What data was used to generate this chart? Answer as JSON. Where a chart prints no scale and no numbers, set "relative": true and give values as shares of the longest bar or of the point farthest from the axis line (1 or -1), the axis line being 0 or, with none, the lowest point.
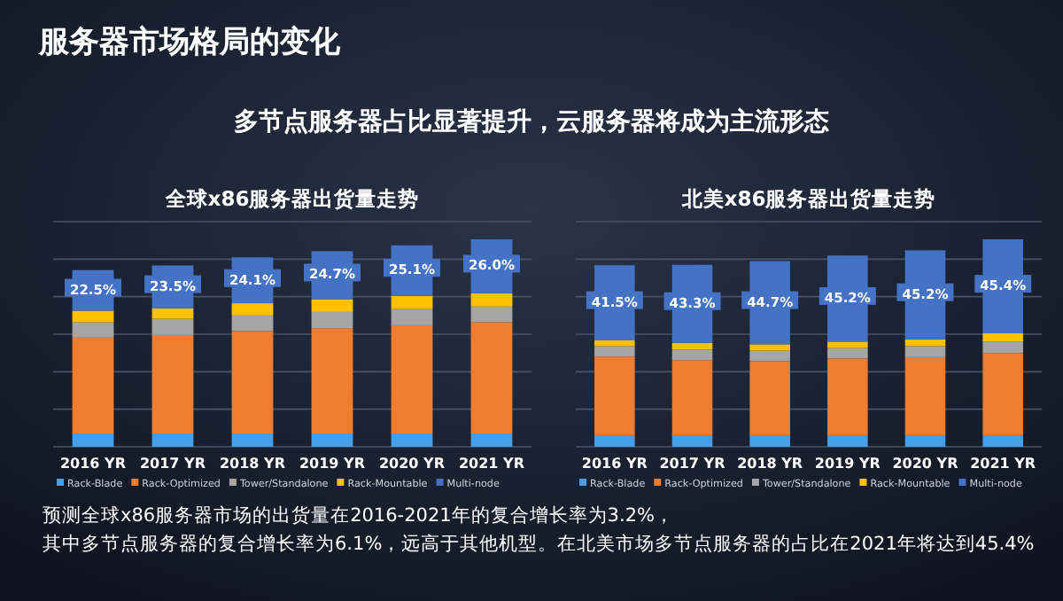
{
  "chart_data": [
    {
      "type": "other",
      "title": "服务器市场格局的变化",
      "subtitle": "多节点服务器占比显著提升，云服务器将成为主流形态",
      "annotations": [
        "预测全球x86服务器市场的出货量在2016-2021年的复合增长率为3.2%，",
        "其中多节点服务器的复合增长率为6.1%，远高于其他机型。在北美市场多节点服务器的占比在2021年将达到45.4%"
      ]
    },
    {
      "type": "bar",
      "title": "全球x86服务器出货量走势",
      "stacked": true,
      "relative": true,
      "grid": "y",
      "legend": "bottom",
      "categories": [
        "2016 YR",
        "2017 YR",
        "2018 YR",
        "2019 YR",
        "2020 YR",
        "2021 YR"
      ],
      "series": [
        {
          "name": "Rack-Blade",
          "color": "#4a9ee8",
          "values": [
            0.064,
            0.064,
            0.064,
            0.064,
            0.064,
            0.064
          ]
        },
        {
          "name": "Rack-Optimized",
          "color": "#ed7d31",
          "values": [
            0.466,
            0.475,
            0.494,
            0.508,
            0.522,
            0.537
          ]
        },
        {
          "name": "Tower/Standalone",
          "color": "#a5a5a5",
          "values": [
            0.07,
            0.078,
            0.075,
            0.078,
            0.078,
            0.075
          ]
        },
        {
          "name": "Rack-Mountable",
          "color": "#ffc000",
          "values": [
            0.056,
            0.05,
            0.059,
            0.061,
            0.064,
            0.064
          ]
        },
        {
          "name": "Multi-node",
          "color": "#4472c4",
          "values": [
            0.196,
            0.207,
            0.221,
            0.232,
            0.243,
            0.26
          ]
        }
      ],
      "annotations": [
        {
          "text": "22.5%",
          "x": "2016 YR",
          "y": 0.754
        },
        {
          "text": "23.5%",
          "x": "2017 YR",
          "y": 0.771
        },
        {
          "text": "24.1%",
          "x": "2018 YR",
          "y": 0.8
        },
        {
          "text": "24.7%",
          "x": "2019 YR",
          "y": 0.827
        },
        {
          "text": "25.1%",
          "x": "2020 YR",
          "y": 0.85
        },
        {
          "text": "26.0%",
          "x": "2021 YR",
          "y": 0.87
        }
      ]
    },
    {
      "type": "bar",
      "title": "北美x86服务器出货量走势",
      "stacked": true,
      "relative": true,
      "grid": "y",
      "legend": "bottom",
      "categories": [
        "2016 YR",
        "2017 YR",
        "2018 YR",
        "2019 YR",
        "2020 YR",
        "2021 YR"
      ],
      "series": [
        {
          "name": "Rack-Blade",
          "color": "#4a9ee8",
          "values": [
            0.056,
            0.056,
            0.056,
            0.056,
            0.056,
            0.056
          ]
        },
        {
          "name": "Rack-Optimized",
          "color": "#ed7d31",
          "values": [
            0.379,
            0.362,
            0.357,
            0.37,
            0.376,
            0.396
          ]
        },
        {
          "name": "Tower/Standalone",
          "color": "#a5a5a5",
          "values": [
            0.05,
            0.05,
            0.05,
            0.05,
            0.053,
            0.056
          ]
        },
        {
          "name": "Rack-Mountable",
          "color": "#ffc000",
          "values": [
            0.028,
            0.033,
            0.031,
            0.031,
            0.033,
            0.039
          ]
        },
        {
          "name": "Multi-node",
          "color": "#4472c4",
          "values": [
            0.362,
            0.376,
            0.401,
            0.415,
            0.429,
            0.453
          ]
        }
      ],
      "annotations": [
        {
          "text": "41.5%",
          "x": "2016 YR",
          "y": 0.694
        },
        {
          "text": "43.3%",
          "x": "2017 YR",
          "y": 0.689
        },
        {
          "text": "44.7%",
          "x": "2018 YR",
          "y": 0.694
        },
        {
          "text": "45.2%",
          "x": "2019 YR",
          "y": 0.714
        },
        {
          "text": "45.2%",
          "x": "2020 YR",
          "y": 0.732
        },
        {
          "text": "45.4%",
          "x": "2021 YR",
          "y": 0.773
        }
      ]
    }
  ]
}
